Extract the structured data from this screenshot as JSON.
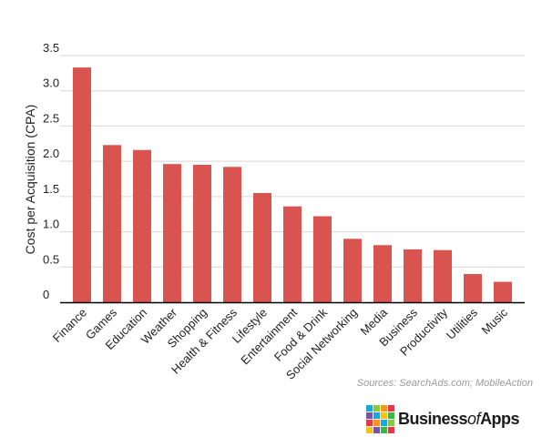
{
  "chart_data": {
    "type": "bar",
    "categories": [
      "Finance",
      "Games",
      "Education",
      "Weather",
      "Shopping",
      "Health & Fitness",
      "Lifestyle",
      "Entertainment",
      "Food & Drink",
      "Social Networking",
      "Media",
      "Business",
      "Productivity",
      "Utilities",
      "Music"
    ],
    "values": [
      3.33,
      2.23,
      2.16,
      1.96,
      1.95,
      1.92,
      1.55,
      1.36,
      1.22,
      0.9,
      0.81,
      0.75,
      0.74,
      0.4,
      0.29
    ],
    "title": "",
    "xlabel": "",
    "ylabel": "Cost per Acquisition (CPA)",
    "ylim": [
      0,
      3.5
    ],
    "yticks": [
      "0",
      "0.5",
      "1.0",
      "1.5",
      "2.0",
      "2.5",
      "3.0",
      "3.5"
    ],
    "bar_color": "#d9534f",
    "grid": true,
    "legend": "none"
  },
  "source": "Sources: SearchAds.com; MobileAction",
  "logo": {
    "brand_prefix": "Business",
    "brand_of": "of",
    "brand_suffix": "Apps",
    "colors": [
      "#1fa5d8",
      "#8cc63f",
      "#f7941d",
      "#e2384f",
      "#7b52ab",
      "#1fa5d8",
      "#f7c21d",
      "#39b54a",
      "#e2384f",
      "#f7941d",
      "#1fa5d8",
      "#8cc63f",
      "#f7c21d",
      "#7b52ab",
      "#39b54a",
      "#e2384f"
    ]
  }
}
